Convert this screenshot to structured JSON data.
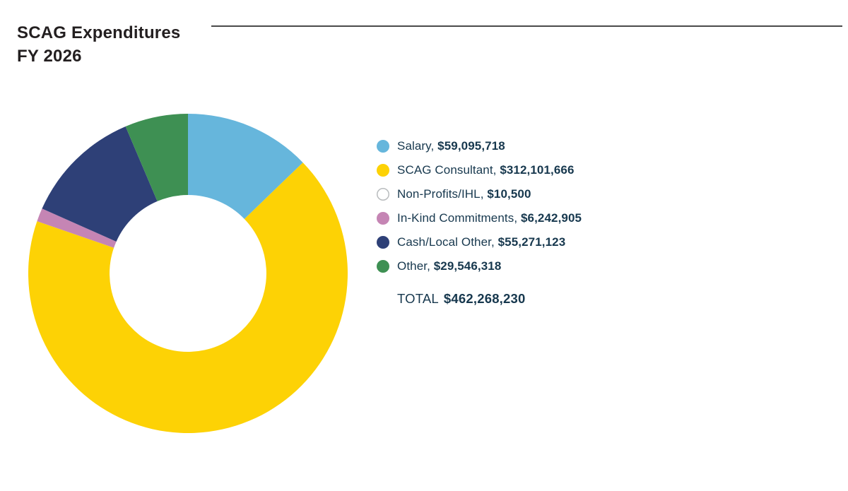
{
  "title": {
    "line1": "SCAG Expenditures",
    "line2": "FY 2026"
  },
  "colors": {
    "title_text": "#231f20",
    "legend_text": "#17384e",
    "rule": "#4a4a4a",
    "background": "#ffffff"
  },
  "chart_data": {
    "type": "pie",
    "subtype": "donut",
    "title": "SCAG Expenditures FY 2026",
    "donut_inner_ratio": 0.491,
    "start_angle_deg": 0,
    "direction": "clockwise",
    "legend_position": "right",
    "slices": [
      {
        "label": "Salary",
        "value": 59095718,
        "display": "$59,095,718",
        "color": "#66b6dc",
        "outline": null
      },
      {
        "label": "SCAG Consultant",
        "value": 312101666,
        "display": "$312,101,666",
        "color": "#fdd205",
        "outline": null
      },
      {
        "label": "Non-Profits/IHL",
        "value": 10500,
        "display": "$10,500",
        "color": "#ffffff",
        "outline": "#b9bcbe"
      },
      {
        "label": "In-Kind Commitments",
        "value": 6242905,
        "display": "$6,242,905",
        "color": "#c585b4",
        "outline": null
      },
      {
        "label": "Cash/Local Other",
        "value": 55271123,
        "display": "$55,271,123",
        "color": "#2e4077",
        "outline": null
      },
      {
        "label": "Other",
        "value": 29546318,
        "display": "$29,546,318",
        "color": "#3e9053",
        "outline": null
      }
    ],
    "total_label": "TOTAL",
    "total_value": "$462,268,230",
    "total_numeric": 462268230
  }
}
